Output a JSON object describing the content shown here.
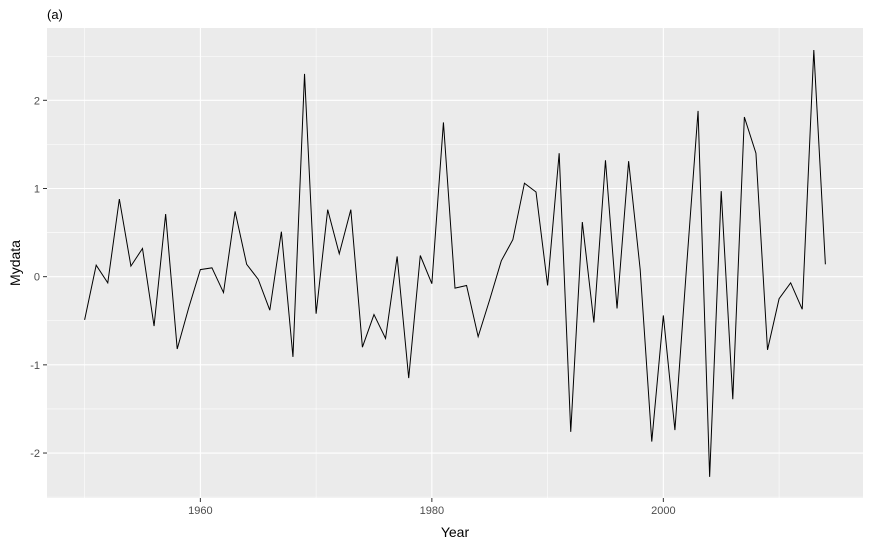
{
  "chart_data": {
    "type": "line",
    "tag": "(a)",
    "xlabel": "Year",
    "ylabel": "Mydata",
    "xlim": [
      1946.75,
      2017.25
    ],
    "ylim": [
      -2.51,
      2.82
    ],
    "x_ticks": [
      1960,
      1980,
      2000
    ],
    "x_tick_labels": [
      "1960",
      "1980",
      "2000"
    ],
    "y_ticks": [
      -2,
      -1,
      0,
      1,
      2
    ],
    "y_tick_labels": [
      "-2",
      "-1",
      "0",
      "1",
      "2"
    ],
    "grid": true,
    "legend": "none",
    "colors": {
      "panel": "#ebebeb",
      "grid_major": "#ffffff",
      "line": "#000000",
      "tick": "#333333"
    },
    "series": [
      {
        "x": [
          1950,
          1951,
          1952,
          1953,
          1954,
          1955,
          1956,
          1957,
          1958,
          1959,
          1960,
          1961,
          1962,
          1963,
          1964,
          1965,
          1966,
          1967,
          1968,
          1969,
          1970,
          1971,
          1972,
          1973,
          1974,
          1975,
          1976,
          1977,
          1978,
          1979,
          1980,
          1981,
          1982,
          1983,
          1984,
          1985,
          1986,
          1987,
          1988,
          1989,
          1990,
          1991,
          1992,
          1993,
          1994,
          1995,
          1996,
          1997,
          1998,
          1999,
          2000,
          2001,
          2002,
          2003,
          2004,
          2005,
          2006,
          2007,
          2008,
          2009,
          2010,
          2011,
          2012,
          2013,
          2014
        ],
        "y": [
          -0.49,
          0.13,
          -0.07,
          0.88,
          0.12,
          0.32,
          -0.56,
          0.71,
          -0.82,
          -0.35,
          0.08,
          0.1,
          -0.18,
          0.74,
          0.14,
          -0.03,
          -0.38,
          0.51,
          -0.91,
          2.3,
          -0.42,
          0.76,
          0.26,
          0.76,
          -0.8,
          -0.43,
          -0.7,
          0.23,
          -1.15,
          0.24,
          -0.08,
          1.75,
          -0.13,
          -0.1,
          -0.68,
          -0.26,
          0.18,
          0.42,
          1.06,
          0.96,
          -0.1,
          1.4,
          -1.76,
          0.62,
          -0.52,
          1.32,
          -0.36,
          1.31,
          0.08,
          -1.87,
          -0.44,
          -1.74,
          0.1,
          1.88,
          -2.27,
          0.97,
          -1.39,
          1.81,
          1.4,
          -0.83,
          -0.25,
          -0.07,
          -0.37,
          2.57,
          0.14
        ]
      }
    ]
  }
}
